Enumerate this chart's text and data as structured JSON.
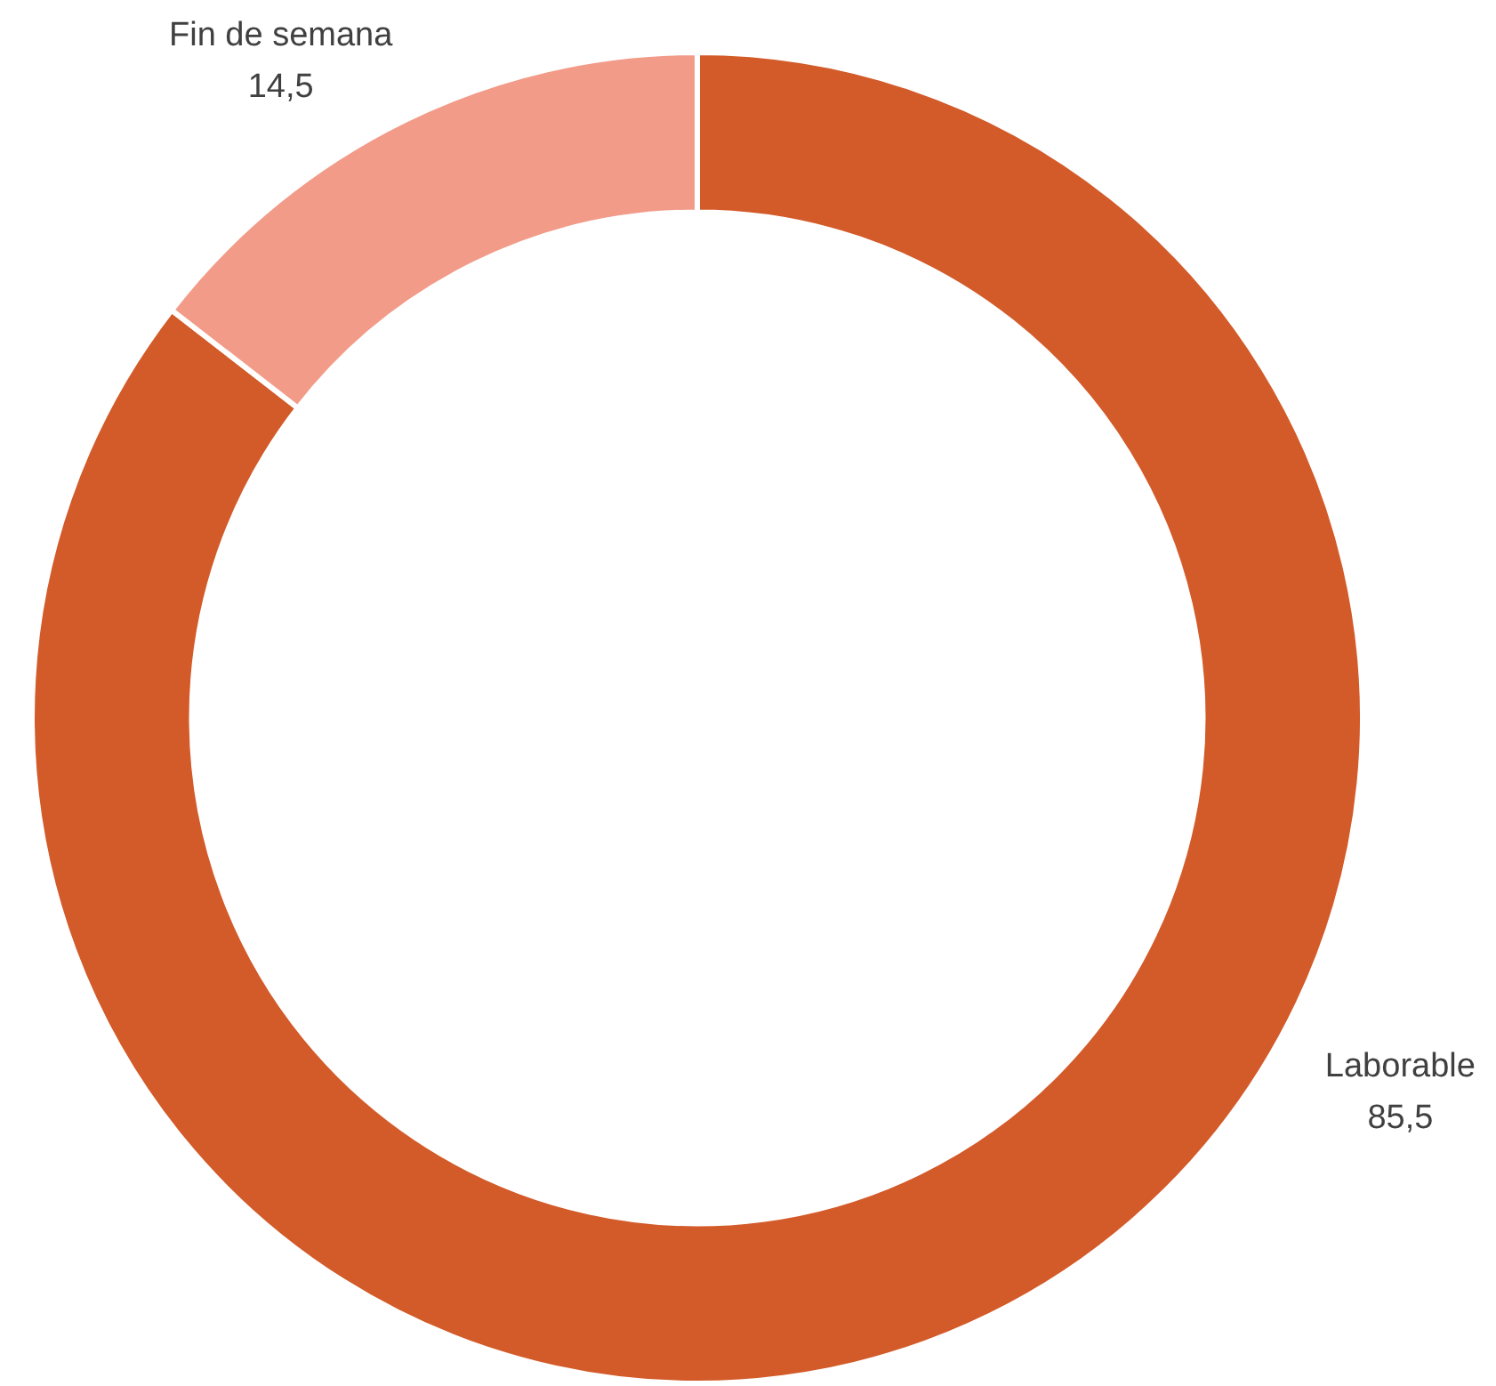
{
  "chart_data": {
    "type": "donut",
    "categories": [
      "Laborable",
      "Fin de semana"
    ],
    "values": [
      85.5,
      14.5
    ],
    "colors": [
      "#d35a29",
      "#f29b88"
    ],
    "value_labels": [
      "85,5",
      "14,5"
    ],
    "legend": false
  }
}
